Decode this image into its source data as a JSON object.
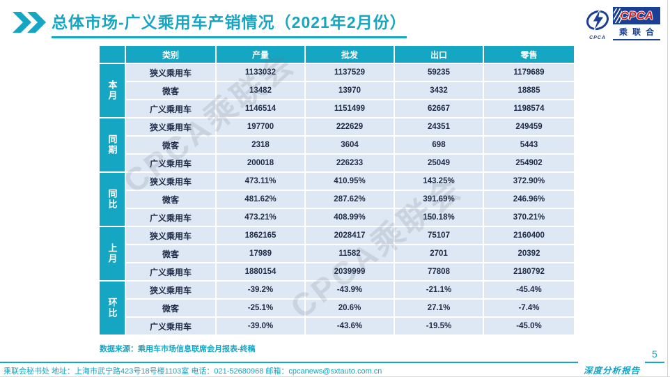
{
  "slide": {
    "title": "总体市场-广义乘用车产销情况（2021年2月份）",
    "source_note": "数据来源：乘用车市场信息联席会月报表-终稿",
    "footer_text": "乘联会秘书处   地址：上海市武宁路423号18号楼1103室  电话：021-52680968   邮箱：cpcanews@sxtauto.com.cn",
    "report_label": "深度分析报告",
    "page_number": "5",
    "watermark": "CPCA乘联会"
  },
  "logo": {
    "cpca_text": "CPCA",
    "chinese_text": "乘联合",
    "emblem_caption": "CPCA"
  },
  "colors": {
    "accent_cyan": "#15a6c3",
    "cell_background": "#dde8f4",
    "cell_text": "#1e2a47",
    "logo_blue": "#1b3f94",
    "logo_red": "#cf2329"
  },
  "icons": {
    "chevrons": "double-right-chevron"
  },
  "table": {
    "columns": [
      "类别",
      "产量",
      "批发",
      "出口",
      "零售"
    ],
    "groups": [
      {
        "label": "本月",
        "rows": [
          {
            "category": "狭义乘用车",
            "values": [
              "1133032",
              "1137529",
              "59235",
              "1179689"
            ]
          },
          {
            "category": "微客",
            "values": [
              "13482",
              "13970",
              "3432",
              "18885"
            ]
          },
          {
            "category": "广义乘用车",
            "values": [
              "1146514",
              "1151499",
              "62667",
              "1198574"
            ]
          }
        ]
      },
      {
        "label": "同期",
        "rows": [
          {
            "category": "狭义乘用车",
            "values": [
              "197700",
              "222629",
              "24351",
              "249459"
            ]
          },
          {
            "category": "微客",
            "values": [
              "2318",
              "3604",
              "698",
              "5443"
            ]
          },
          {
            "category": "广义乘用车",
            "values": [
              "200018",
              "226233",
              "25049",
              "254902"
            ]
          }
        ]
      },
      {
        "label": "同比",
        "rows": [
          {
            "category": "狭义乘用车",
            "values": [
              "473.11%",
              "410.95%",
              "143.25%",
              "372.90%"
            ]
          },
          {
            "category": "微客",
            "values": [
              "481.62%",
              "287.62%",
              "391.69%",
              "246.96%"
            ]
          },
          {
            "category": "广义乘用车",
            "values": [
              "473.21%",
              "408.99%",
              "150.18%",
              "370.21%"
            ]
          }
        ]
      },
      {
        "label": "上月",
        "rows": [
          {
            "category": "狭义乘用车",
            "values": [
              "1862165",
              "2028417",
              "75107",
              "2160400"
            ]
          },
          {
            "category": "微客",
            "values": [
              "17989",
              "11582",
              "2701",
              "20392"
            ]
          },
          {
            "category": "广义乘用车",
            "values": [
              "1880154",
              "2039999",
              "77808",
              "2180792"
            ]
          }
        ]
      },
      {
        "label": "环比",
        "rows": [
          {
            "category": "狭义乘用车",
            "values": [
              "-39.2%",
              "-43.9%",
              "-21.1%",
              "-45.4%"
            ]
          },
          {
            "category": "微客",
            "values": [
              "-25.1%",
              "20.6%",
              "27.1%",
              "-7.4%"
            ]
          },
          {
            "category": "广义乘用车",
            "values": [
              "-39.0%",
              "-43.6%",
              "-19.5%",
              "-45.0%"
            ]
          }
        ]
      }
    ]
  }
}
